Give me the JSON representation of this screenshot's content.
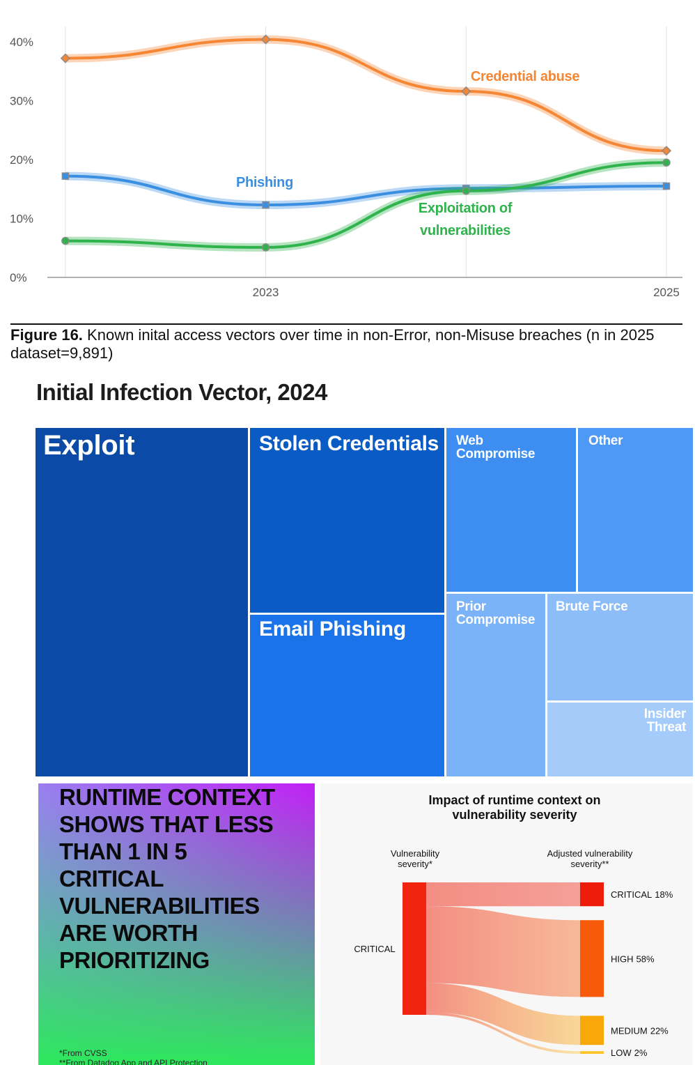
{
  "chart_data": [
    {
      "type": "line",
      "x": [
        2022,
        2023,
        2024,
        2025
      ],
      "xlim": [
        2021.91,
        2025.08
      ],
      "xticks": [
        2023,
        2025
      ],
      "ylim": [
        0,
        42.6
      ],
      "yticks": [
        {
          "value": 0,
          "label": "0%"
        },
        {
          "value": 10,
          "label": "10%"
        },
        {
          "value": 20,
          "label": "20%"
        },
        {
          "value": 30,
          "label": "30%"
        },
        {
          "value": 40,
          "label": "40%"
        }
      ],
      "series": [
        {
          "name": "Credential abuse",
          "color": "#f58634",
          "marker": "diamond",
          "values": [
            37.2,
            40.4,
            31.6,
            21.5
          ]
        },
        {
          "name": "Phishing",
          "color": "#3b8fe0",
          "marker": "square",
          "values": [
            17.2,
            12.3,
            15.1,
            15.5
          ]
        },
        {
          "name": "Exploitation of vulnerabilities",
          "color": "#2fb34c",
          "marker": "circle",
          "values": [
            6.2,
            5.1,
            14.7,
            19.5
          ]
        }
      ],
      "caption_label": "Figure 16.",
      "caption": "Known inital access vectors over time in non-Error, non-Misuse breaches (n in 2025 dataset=9,891)"
    },
    {
      "type": "treemap",
      "title": "Initial Infection Vector, 2024",
      "unit": "%",
      "categories": [
        "Exploit",
        "Stolen Credentials",
        "Email Phishing",
        "Web Compromise",
        "Other",
        "Prior Compromise",
        "Brute Force",
        "Insider Threat"
      ],
      "values": [
        33,
        16,
        14,
        9,
        8,
        8,
        7,
        5
      ],
      "colors": [
        "#0b4aa6",
        "#0a5bc4",
        "#1a73e8",
        "#3d8ef0",
        "#4d99f5",
        "#7ab3f7",
        "#8dbdf8",
        "#a5cbfa"
      ]
    },
    {
      "type": "sankey",
      "title": "Impact of runtime context on vulnerability severity",
      "source_header": "Vulnerability severity*",
      "target_header": "Adjusted vulnerability severity**",
      "source": "CRITICAL",
      "source_color": "#f0240f",
      "categories": [
        "CRITICAL",
        "HIGH",
        "MEDIUM",
        "LOW"
      ],
      "values": [
        18,
        58,
        22,
        2
      ],
      "value_labels": [
        "18%",
        "58%",
        "22%",
        "2%"
      ],
      "colors": [
        "#ee1c0a",
        "#f65a0a",
        "#f9a80a",
        "#fcc52a"
      ]
    }
  ],
  "panel": {
    "headline": "RUNTIME CONTEXT SHOWS THAT LESS THAN 1 IN 5 CRITICAL VULNERABILITIES ARE WORTH PRIORITIZING",
    "footnotes": [
      "*From CVSS",
      "**From Datadog App and API Protection"
    ]
  }
}
